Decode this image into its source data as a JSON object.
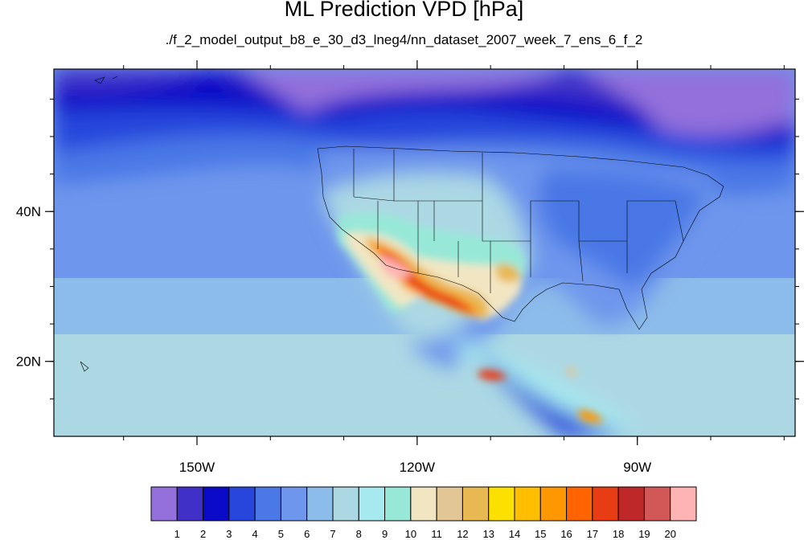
{
  "title": "ML Prediction VPD [hPa]",
  "subtitle": "./f_2_model_output_b8_e_30_d3_lneg4/nn_dataset_2007_week_7_ens_6_f_2",
  "map": {
    "lon_range": [
      -169.5,
      -68.5
    ],
    "lat_range": [
      10,
      59
    ],
    "lon_ticks": [
      {
        "value": -150,
        "label": "150W"
      },
      {
        "value": -120,
        "label": "120W"
      },
      {
        "value": -90,
        "label": "90W"
      }
    ],
    "lat_ticks": [
      {
        "value": 40,
        "label": "40N"
      },
      {
        "value": 20,
        "label": "20N"
      }
    ]
  },
  "colorbar": {
    "labels": [
      "1",
      "2",
      "3",
      "4",
      "5",
      "6",
      "7",
      "8",
      "9",
      "10",
      "11",
      "12",
      "13",
      "14",
      "15",
      "16",
      "17",
      "18",
      "19",
      "20"
    ],
    "colors": [
      "#9370db",
      "#4030c8",
      "#0a0ac8",
      "#2846dc",
      "#4a78e6",
      "#6e96ec",
      "#8cbcea",
      "#acd8e4",
      "#a6eaf0",
      "#98e8d8",
      "#f2e6c2",
      "#e2c696",
      "#e8b852",
      "#fce000",
      "#ffbe00",
      "#ff9800",
      "#ff6400",
      "#e83c14",
      "#be2828",
      "#d25858",
      "#ffb4b4"
    ]
  }
}
